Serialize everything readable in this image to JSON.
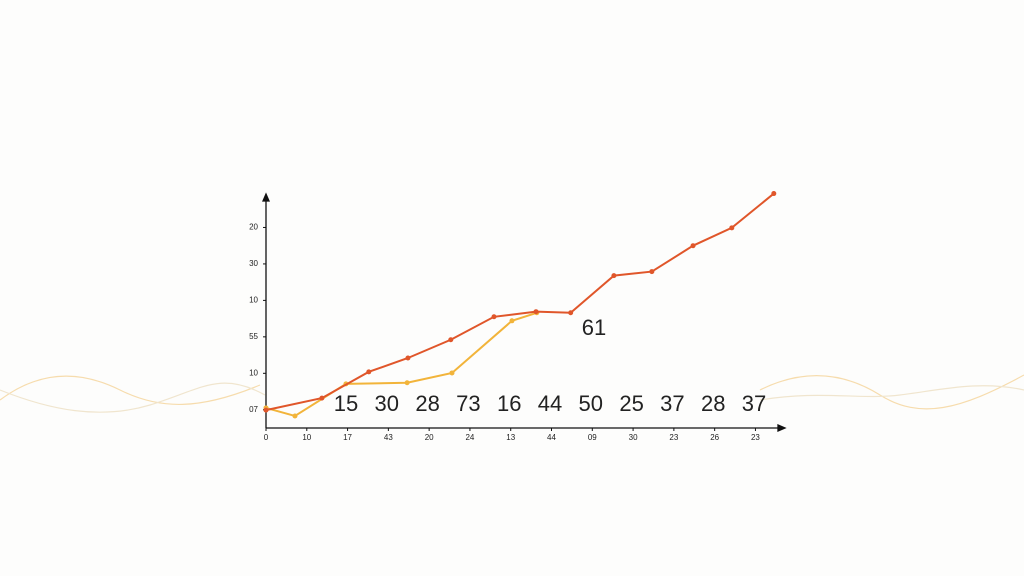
{
  "chart_data": {
    "type": "line",
    "xlim": [
      0,
      12.7
    ],
    "ylim": [
      0,
      6.5
    ],
    "xticks": [
      {
        "value": 0,
        "label": "0"
      },
      {
        "value": 1,
        "label": "10"
      },
      {
        "value": 2,
        "label": "17"
      },
      {
        "value": 3,
        "label": "43"
      },
      {
        "value": 4,
        "label": "20"
      },
      {
        "value": 5,
        "label": "24"
      },
      {
        "value": 6,
        "label": "13"
      },
      {
        "value": 7,
        "label": "44"
      },
      {
        "value": 8,
        "label": "09"
      },
      {
        "value": 9,
        "label": "30"
      },
      {
        "value": 10,
        "label": "23"
      },
      {
        "value": 11,
        "label": "26"
      },
      {
        "value": 12,
        "label": "23"
      }
    ],
    "yticks": [
      {
        "value": 0.5,
        "label": "07"
      },
      {
        "value": 1.5,
        "label": "10"
      },
      {
        "value": 2.5,
        "label": "55"
      },
      {
        "value": 3.5,
        "label": "10"
      },
      {
        "value": 4.5,
        "label": "30"
      },
      {
        "value": 5.5,
        "label": "20"
      }
    ],
    "series": [
      {
        "color": "#f2b43a",
        "x": [
          0,
          0.71,
          1.96,
          3.46,
          4.56,
          6.03,
          6.64
        ],
        "values": [
          0.55,
          0.33,
          1.21,
          1.24,
          1.51,
          2.94,
          3.16
        ]
      },
      {
        "color": "#e0562a",
        "x": [
          0,
          1.37,
          2.52,
          3.48,
          4.53,
          5.59,
          6.62,
          7.47,
          8.53,
          9.46,
          10.47,
          11.42,
          12.45
        ],
        "values": [
          0.49,
          0.82,
          1.54,
          1.92,
          2.42,
          3.05,
          3.19,
          3.16,
          4.18,
          4.29,
          5.0,
          5.49,
          6.43
        ]
      }
    ],
    "annotations": [
      15,
      30,
      28,
      73,
      16,
      44,
      50,
      25,
      37,
      28,
      37
    ],
    "callout": 61
  }
}
